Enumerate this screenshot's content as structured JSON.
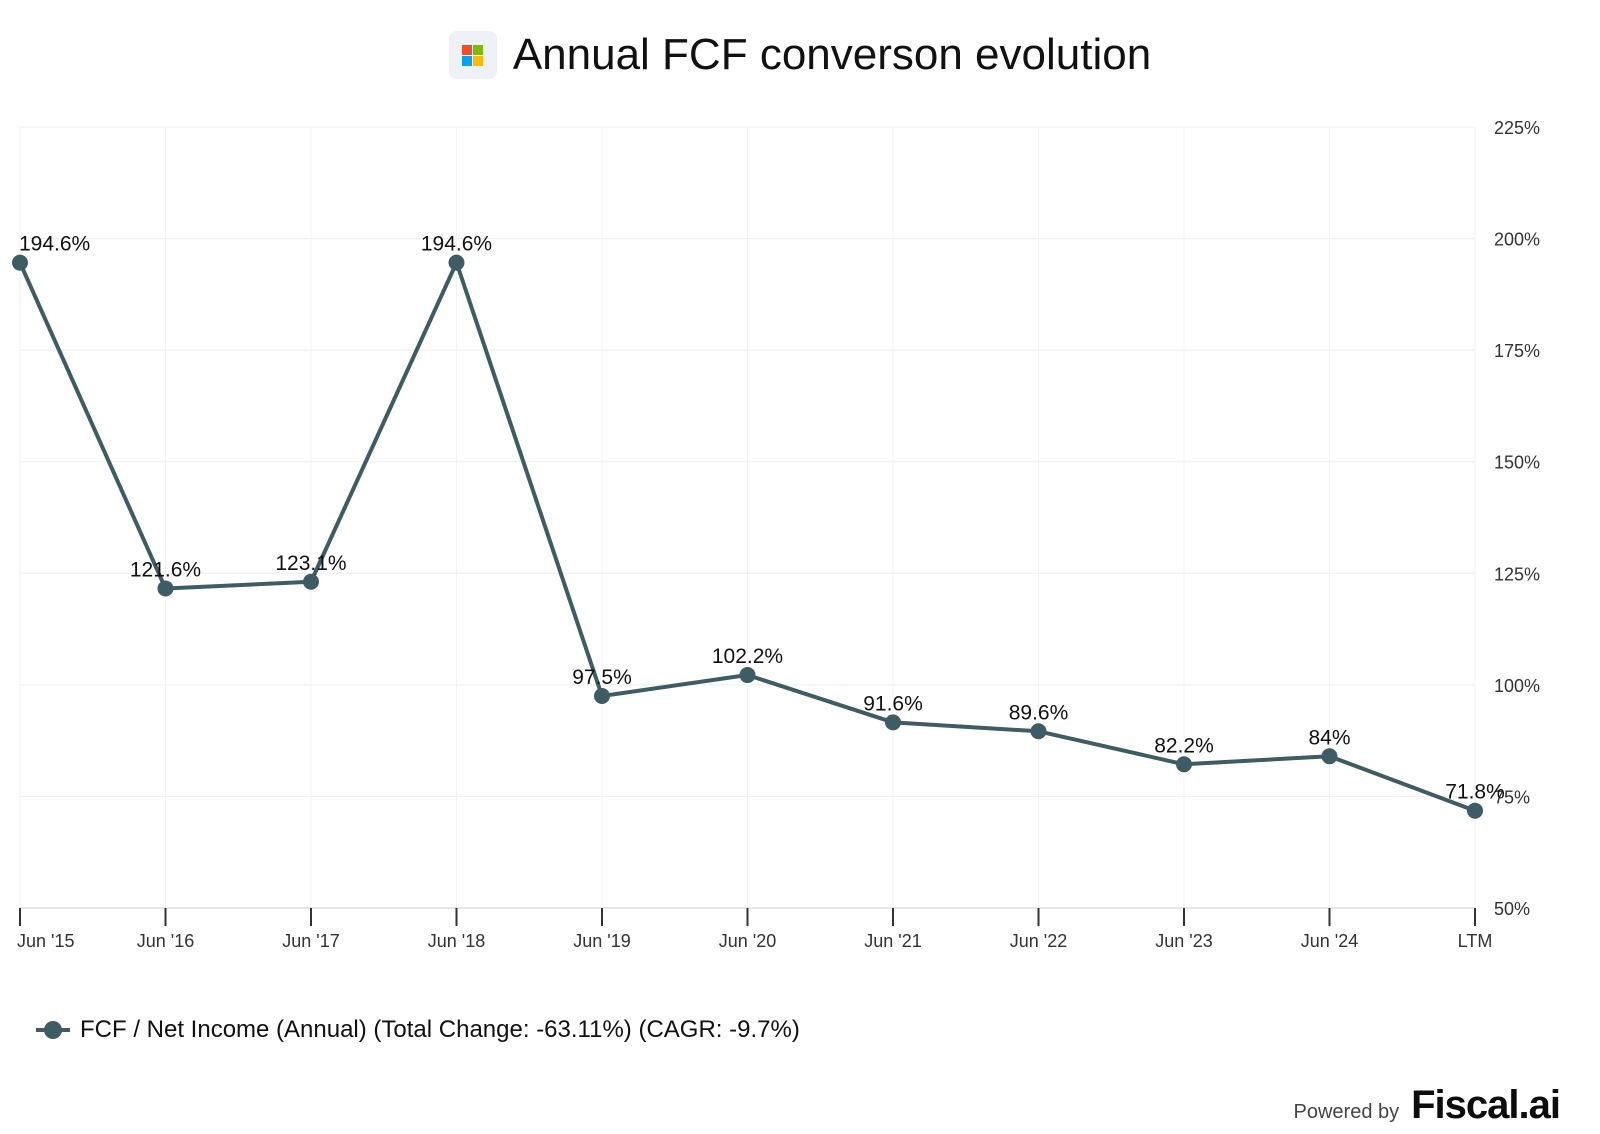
{
  "header": {
    "title": "Annual FCF converson evolution",
    "logo_icon": "microsoft-logo-icon"
  },
  "colors": {
    "series": "#3d5c63",
    "grid": "#eeeeee",
    "axis": "#cccccc",
    "logo": [
      "#f25022",
      "#7fba00",
      "#00a4ef",
      "#ffb900"
    ]
  },
  "chart_data": {
    "type": "line",
    "title": "Annual FCF converson evolution",
    "categories": [
      "Jun '15",
      "Jun '16",
      "Jun '17",
      "Jun '18",
      "Jun '19",
      "Jun '20",
      "Jun '21",
      "Jun '22",
      "Jun '23",
      "Jun '24",
      "LTM"
    ],
    "series": [
      {
        "name": "FCF / Net Income (Annual) (Total Change: -63.11%) (CAGR: -9.7%)",
        "values": [
          194.6,
          121.6,
          123.1,
          194.6,
          97.5,
          102.2,
          91.6,
          89.6,
          82.2,
          84,
          71.8
        ],
        "labels": [
          "194.6%",
          "121.6%",
          "123.1%",
          "194.6%",
          "97.5%",
          "102.2%",
          "91.6%",
          "89.6%",
          "82.2%",
          "84%",
          "71.8%"
        ]
      }
    ],
    "ylim": [
      50,
      225
    ],
    "yticks": [
      "50%",
      "75%",
      "100%",
      "125%",
      "150%",
      "175%",
      "200%",
      "225%"
    ],
    "y_axis_position": "right",
    "grid": true,
    "legend": "bottom-left",
    "xlabel": "",
    "ylabel": ""
  },
  "legend": {
    "label": "FCF / Net Income (Annual) (Total Change: -63.11%) (CAGR: -9.7%)"
  },
  "footer": {
    "powered_by": "Powered by",
    "brand": "Fiscal.ai"
  }
}
